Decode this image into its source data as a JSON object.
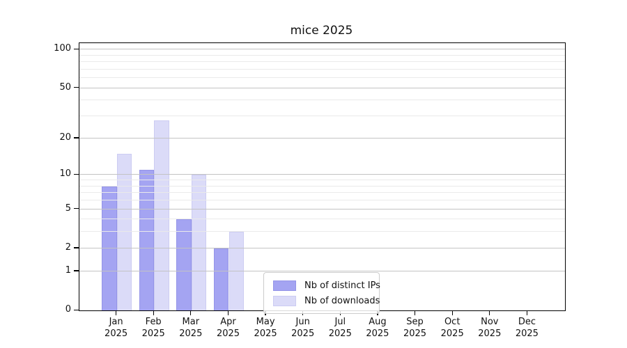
{
  "title": "mice 2025",
  "chart_data": {
    "type": "bar",
    "title": "mice 2025",
    "categories": [
      "Jan",
      "Feb",
      "Mar",
      "Apr",
      "May",
      "Jun",
      "Jul",
      "Aug",
      "Sep",
      "Oct",
      "Nov",
      "Dec"
    ],
    "x_year": "2025",
    "series": [
      {
        "name": "Nb of distinct IPs",
        "color": "#a4a4f2",
        "edge_color": "#9494e8",
        "values": [
          8,
          11,
          4,
          2,
          0,
          0,
          0,
          0,
          0,
          0,
          0,
          0
        ]
      },
      {
        "name": "Nb of downloads",
        "color": "#dbdbf8",
        "edge_color": "#ccccf2",
        "values": [
          15,
          28,
          10,
          3,
          0,
          0,
          0,
          0,
          0,
          0,
          0,
          0
        ]
      }
    ],
    "yscale": "log1p",
    "ylim": [
      0,
      112
    ],
    "y_major_ticks": [
      0,
      1,
      2,
      5,
      10,
      20,
      50,
      100
    ],
    "y_minor_ticks": [
      3,
      4,
      6,
      7,
      8,
      9,
      30,
      40,
      60,
      70,
      80,
      90
    ],
    "grid": true,
    "legend_position": "inside-bottom-center-right"
  },
  "colors": {
    "grid_major": "#c3c3c3",
    "grid_minor": "#eaeaea",
    "axis": "#000000",
    "background": "#ffffff"
  }
}
